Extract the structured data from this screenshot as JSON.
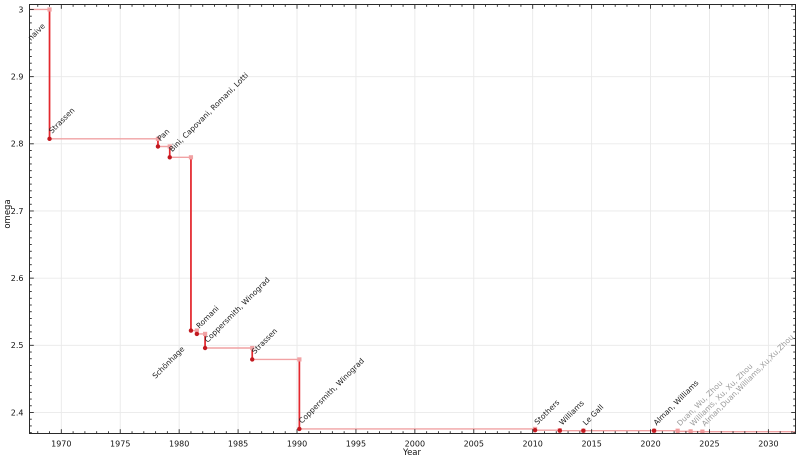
{
  "figure": {
    "xlabel": "Year",
    "ylabel": "omega",
    "background": "#ffffff"
  },
  "axes": {
    "x_ticks": [
      {
        "label": "1970",
        "value": 1970
      },
      {
        "label": "1975",
        "value": 1975
      },
      {
        "label": "1980",
        "value": 1980
      },
      {
        "label": "1985",
        "value": 1985
      },
      {
        "label": "1990",
        "value": 1990
      },
      {
        "label": "1995",
        "value": 1995
      },
      {
        "label": "2000",
        "value": 2000
      },
      {
        "label": "2005",
        "value": 2005
      },
      {
        "label": "2010",
        "value": 2010
      },
      {
        "label": "2015",
        "value": 2015
      },
      {
        "label": "2020",
        "value": 2020
      },
      {
        "label": "2025",
        "value": 2025
      },
      {
        "label": "2030",
        "value": 2030
      }
    ],
    "y_ticks": [
      {
        "label": "3",
        "value": 3.0
      },
      {
        "label": "2.9",
        "value": 2.9
      },
      {
        "label": "2.8",
        "value": 2.8
      },
      {
        "label": "2.7",
        "value": 2.7
      },
      {
        "label": "2.6",
        "value": 2.6
      },
      {
        "label": "2.5",
        "value": 2.5
      },
      {
        "label": "2.4",
        "value": 2.4
      }
    ],
    "x_minor_step": 1,
    "y_minor_step": 0.01
  },
  "chart_data": {
    "type": "line",
    "subtype": "step-post",
    "title": "",
    "xlabel": "Year",
    "ylabel": "omega",
    "xlim": [
      1967.3,
      2032.3
    ],
    "ylim": [
      2.369,
      3.007
    ],
    "grid": true,
    "legend": "none",
    "start": {
      "omega": 3.0,
      "label": "naive"
    },
    "points": [
      {
        "year": 1969,
        "omega": 2.8074,
        "label": "Strassen"
      },
      {
        "year": 1978.2,
        "omega": 2.796,
        "label": "Pan"
      },
      {
        "year": 1979.2,
        "omega": 2.7799,
        "label": "Bini, Capovani, Romani, Lotti"
      },
      {
        "year": 1981,
        "omega": 2.522,
        "label": "Schönhage",
        "label_anchor": "end",
        "label_dx": -6,
        "label_dy": 19
      },
      {
        "year": 1981.5,
        "omega": 2.517,
        "label": "Romani"
      },
      {
        "year": 1982.2,
        "omega": 2.496,
        "label": "Coppersmith, Winograd"
      },
      {
        "year": 1986.2,
        "omega": 2.479,
        "label": "Strassen"
      },
      {
        "year": 1990.2,
        "omega": 2.3755,
        "label": "Coppersmith, Winograd"
      },
      {
        "year": 2010.2,
        "omega": 2.3737,
        "label": "Stothers"
      },
      {
        "year": 2012.3,
        "omega": 2.3729,
        "label": "Williams"
      },
      {
        "year": 2014.3,
        "omega": 2.3728639,
        "label": "Le Gall"
      },
      {
        "year": 2020.3,
        "omega": 2.3728596,
        "label": "Alman, Williams"
      },
      {
        "year": 2022.3,
        "omega": 2.371866,
        "label": "Duan, Wu, Zhou",
        "recent": true
      },
      {
        "year": 2023.4,
        "omega": 2.371552,
        "label": "Williams, Xu, Xu, Zhou",
        "recent": true
      },
      {
        "year": 2024.4,
        "omega": 2.371339,
        "label": "Alman,Duan,Williams,Xu,Xu,Zhou",
        "recent": true
      }
    ]
  },
  "colors": {
    "step_line": "#f1a2a4",
    "drop_line": "#e3282e",
    "marker": "#c2191f",
    "marker_recent": "#f0999b",
    "grid": "#e9e9e9",
    "axis": "#2a2a2a",
    "tick_label": "#111111",
    "annotation": "#1c1c1c",
    "annotation_recent": "#9c9c9c"
  }
}
